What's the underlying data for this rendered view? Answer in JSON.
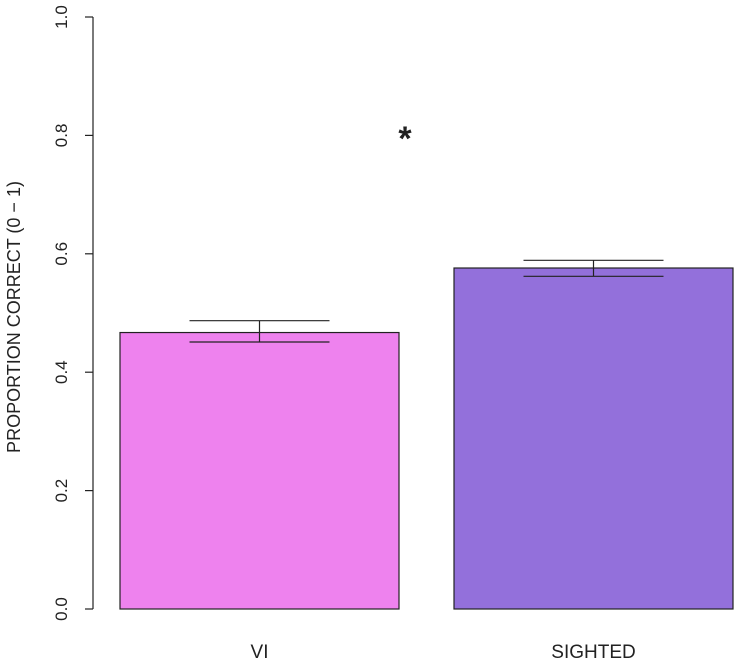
{
  "chart_data": {
    "type": "bar",
    "title": "",
    "xlabel": "",
    "ylabel": "PROPORTION CORRECT (0 − 1)",
    "ylim": [
      0,
      1
    ],
    "yticks": [
      "0.0",
      "0.2",
      "0.4",
      "0.6",
      "0.8",
      "1.0"
    ],
    "grid": false,
    "categories": [
      "VI",
      "SIGHTED"
    ],
    "values": [
      0.467,
      0.576
    ],
    "error_bars": [
      {
        "low": 0.451,
        "high": 0.487
      },
      {
        "low": 0.562,
        "high": 0.589
      }
    ],
    "colors": [
      "#ee82ee",
      "#9370db"
    ],
    "annotation": "*"
  }
}
